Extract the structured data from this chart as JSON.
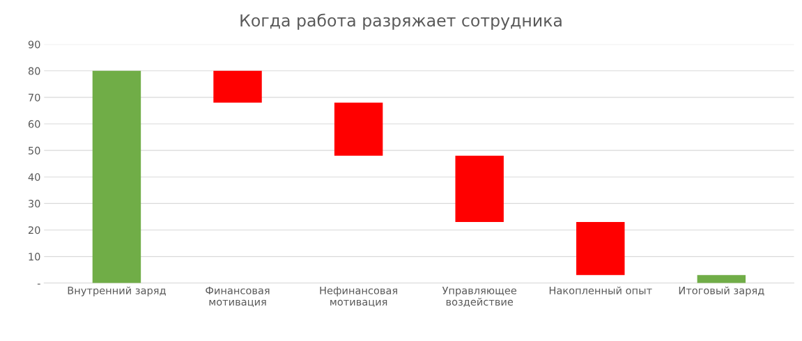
{
  "chart_data": {
    "type": "bar",
    "title": "Когда работа разряжает сотрудника",
    "categories": [
      "Внутренний заряд",
      "Финансовая\nмотивация",
      "Нефинансовая\nмотивация",
      "Управляющее\nвоздействие",
      "Накопленный опыт",
      "Итоговый заряд"
    ],
    "values": [
      80,
      -12,
      -20,
      -25,
      -20,
      3
    ],
    "base": [
      0,
      80,
      68,
      48,
      23,
      0
    ],
    "colors": [
      "#70ad47",
      "#ff0000",
      "#ff0000",
      "#ff0000",
      "#ff0000",
      "#70ad47"
    ],
    "ylim": [
      0,
      90
    ],
    "yticks": [
      {
        "value": 0,
        "label": "-"
      },
      10,
      20,
      30,
      40,
      50,
      60,
      70,
      80,
      90
    ],
    "grid": "y",
    "legend": false
  }
}
